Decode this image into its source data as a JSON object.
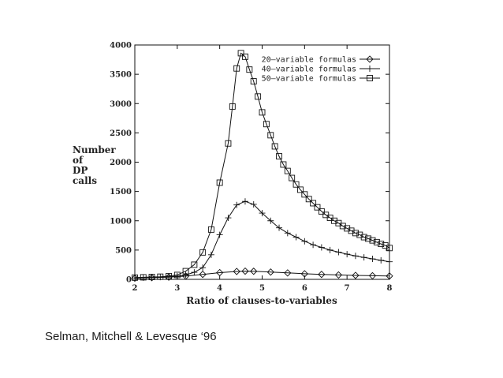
{
  "caption": "Selman, Mitchell & Levesque ‘96",
  "chart_data": {
    "type": "line",
    "xlabel": "Ratio of clauses-to-variables",
    "ylabel_lines": [
      "Number",
      "of",
      "DP",
      "calls"
    ],
    "xlim": [
      2,
      8
    ],
    "ylim": [
      0,
      4000
    ],
    "xticks": [
      2,
      3,
      4,
      5,
      6,
      7,
      8
    ],
    "yticks": [
      0,
      500,
      1000,
      1500,
      2000,
      2500,
      3000,
      3500,
      4000
    ],
    "grid": false,
    "legend_position": "top-right",
    "line_color": "#111111",
    "series": [
      {
        "name": "20–variable formulas",
        "marker": "diamond",
        "points": [
          [
            2.0,
            20
          ],
          [
            2.4,
            28
          ],
          [
            2.8,
            38
          ],
          [
            3.2,
            55
          ],
          [
            3.6,
            85
          ],
          [
            4.0,
            115
          ],
          [
            4.4,
            135
          ],
          [
            4.6,
            140
          ],
          [
            4.8,
            138
          ],
          [
            5.2,
            125
          ],
          [
            5.6,
            110
          ],
          [
            6.0,
            95
          ],
          [
            6.4,
            85
          ],
          [
            6.8,
            75
          ],
          [
            7.2,
            68
          ],
          [
            7.6,
            62
          ],
          [
            8.0,
            58
          ]
        ]
      },
      {
        "name": "40–variable formulas",
        "marker": "plus",
        "points": [
          [
            2.0,
            25
          ],
          [
            2.2,
            28
          ],
          [
            2.4,
            32
          ],
          [
            2.6,
            38
          ],
          [
            2.8,
            45
          ],
          [
            3.0,
            55
          ],
          [
            3.2,
            75
          ],
          [
            3.4,
            120
          ],
          [
            3.6,
            200
          ],
          [
            3.8,
            420
          ],
          [
            4.0,
            760
          ],
          [
            4.2,
            1050
          ],
          [
            4.4,
            1270
          ],
          [
            4.6,
            1330
          ],
          [
            4.8,
            1280
          ],
          [
            5.0,
            1130
          ],
          [
            5.2,
            1000
          ],
          [
            5.4,
            880
          ],
          [
            5.6,
            790
          ],
          [
            5.8,
            720
          ],
          [
            6.0,
            650
          ],
          [
            6.2,
            590
          ],
          [
            6.4,
            545
          ],
          [
            6.6,
            500
          ],
          [
            6.8,
            465
          ],
          [
            7.0,
            430
          ],
          [
            7.2,
            400
          ],
          [
            7.4,
            375
          ],
          [
            7.6,
            350
          ],
          [
            7.8,
            325
          ],
          [
            8.0,
            300
          ]
        ]
      },
      {
        "name": "50–variable formulas",
        "marker": "square",
        "points": [
          [
            2.0,
            30
          ],
          [
            2.2,
            35
          ],
          [
            2.4,
            40
          ],
          [
            2.6,
            45
          ],
          [
            2.8,
            55
          ],
          [
            3.0,
            75
          ],
          [
            3.2,
            140
          ],
          [
            3.4,
            250
          ],
          [
            3.6,
            460
          ],
          [
            3.8,
            850
          ],
          [
            4.0,
            1650
          ],
          [
            4.2,
            2320
          ],
          [
            4.3,
            2950
          ],
          [
            4.4,
            3600
          ],
          [
            4.5,
            3860
          ],
          [
            4.6,
            3800
          ],
          [
            4.7,
            3580
          ],
          [
            4.8,
            3380
          ],
          [
            4.9,
            3120
          ],
          [
            5.0,
            2850
          ],
          [
            5.1,
            2650
          ],
          [
            5.2,
            2460
          ],
          [
            5.3,
            2270
          ],
          [
            5.4,
            2100
          ],
          [
            5.5,
            1960
          ],
          [
            5.6,
            1850
          ],
          [
            5.7,
            1730
          ],
          [
            5.8,
            1620
          ],
          [
            5.9,
            1530
          ],
          [
            6.0,
            1450
          ],
          [
            6.1,
            1370
          ],
          [
            6.2,
            1300
          ],
          [
            6.3,
            1230
          ],
          [
            6.4,
            1160
          ],
          [
            6.5,
            1100
          ],
          [
            6.6,
            1050
          ],
          [
            6.7,
            1000
          ],
          [
            6.8,
            960
          ],
          [
            6.9,
            910
          ],
          [
            7.0,
            870
          ],
          [
            7.1,
            830
          ],
          [
            7.2,
            790
          ],
          [
            7.3,
            760
          ],
          [
            7.4,
            720
          ],
          [
            7.5,
            695
          ],
          [
            7.6,
            665
          ],
          [
            7.7,
            635
          ],
          [
            7.8,
            605
          ],
          [
            7.9,
            580
          ],
          [
            8.0,
            535
          ]
        ]
      }
    ]
  }
}
